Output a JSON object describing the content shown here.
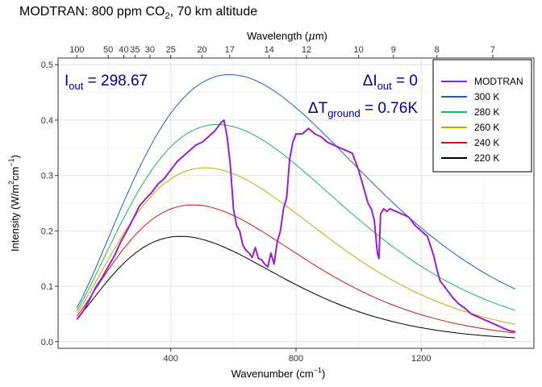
{
  "title": {
    "prefix": "MODTRAN: 800 ppm CO",
    "sub": "2",
    "suffix": ", 70 km altitude"
  },
  "annotations": {
    "iout": {
      "symbol": "I",
      "sub": "out",
      "text": " = 298.67"
    },
    "delta_iout": {
      "symbol": "ΔI",
      "sub": "out",
      "text": " = 0"
    },
    "delta_t": {
      "symbol": "ΔT",
      "sub": "ground",
      "text": " = 0.76K"
    }
  },
  "colors": {
    "MODTRAN": "#9a1fc6",
    "300 K": "#1f5fc0",
    "280 K": "#1fb05a",
    "260 K": "#b8b000",
    "240 K": "#cc1515",
    "220 K": "#000000",
    "grid_major": "#e0e0e0",
    "grid_minor": "#f1f1f1",
    "annotation": "#00008b"
  },
  "chart_data": {
    "type": "line",
    "xlabel": {
      "text": "Wavenumber (cm",
      "sup": "−1",
      "close": ")"
    },
    "ylabel": {
      "text": "Intensity (W/m",
      "sup1": "2",
      "mid": "cm",
      "sup2": "−1",
      "close": ")"
    },
    "top_axis_label": {
      "text": "Wavelength (",
      "mu": "μ",
      "unit": "m)"
    },
    "xlim": [
      40,
      1560
    ],
    "ylim": [
      -0.012,
      0.512
    ],
    "x_ticks": [
      400,
      800,
      1200
    ],
    "y_ticks": [
      0.0,
      0.1,
      0.2,
      0.3,
      0.4,
      0.5
    ],
    "y_tick_labels": [
      "0.0",
      "0.1",
      "0.2",
      "0.3",
      "0.4",
      "0.5"
    ],
    "top_ticks_um": [
      100,
      50,
      40,
      35,
      30,
      25,
      20,
      17,
      14,
      12,
      10,
      9,
      8,
      7
    ],
    "grid": true,
    "legend_position": "top-right",
    "series": [
      {
        "name": "MODTRAN",
        "x": [
          100,
          120,
          140,
          160,
          180,
          200,
          220,
          240,
          260,
          280,
          300,
          320,
          340,
          360,
          380,
          400,
          420,
          440,
          460,
          480,
          500,
          520,
          540,
          560,
          570,
          580,
          590,
          600,
          610,
          620,
          630,
          640,
          650,
          660,
          670,
          680,
          690,
          700,
          710,
          720,
          730,
          740,
          750,
          760,
          770,
          780,
          790,
          800,
          820,
          840,
          860,
          880,
          900,
          920,
          940,
          960,
          980,
          1000,
          1010,
          1020,
          1030,
          1040,
          1050,
          1060,
          1065,
          1070,
          1080,
          1090,
          1100,
          1120,
          1140,
          1160,
          1180,
          1200,
          1220,
          1240,
          1250,
          1260,
          1280,
          1300,
          1320,
          1340,
          1360,
          1380,
          1400,
          1420,
          1440,
          1460,
          1480,
          1500
        ],
        "y": [
          0.04,
          0.055,
          0.075,
          0.098,
          0.115,
          0.135,
          0.155,
          0.18,
          0.2,
          0.222,
          0.245,
          0.258,
          0.27,
          0.285,
          0.295,
          0.31,
          0.325,
          0.335,
          0.345,
          0.355,
          0.36,
          0.37,
          0.38,
          0.395,
          0.4,
          0.37,
          0.32,
          0.24,
          0.21,
          0.2,
          0.175,
          0.165,
          0.16,
          0.152,
          0.17,
          0.15,
          0.148,
          0.14,
          0.135,
          0.16,
          0.14,
          0.18,
          0.2,
          0.24,
          0.26,
          0.33,
          0.36,
          0.375,
          0.375,
          0.385,
          0.375,
          0.37,
          0.36,
          0.355,
          0.35,
          0.345,
          0.34,
          0.31,
          0.29,
          0.27,
          0.25,
          0.24,
          0.22,
          0.16,
          0.15,
          0.23,
          0.24,
          0.235,
          0.24,
          0.235,
          0.23,
          0.225,
          0.21,
          0.2,
          0.19,
          0.155,
          0.13,
          0.11,
          0.095,
          0.08,
          0.068,
          0.06,
          0.05,
          0.045,
          0.04,
          0.035,
          0.03,
          0.025,
          0.02,
          0.018
        ]
      },
      {
        "name": "300 K",
        "temperature": 300
      },
      {
        "name": "280 K",
        "temperature": 280
      },
      {
        "name": "260 K",
        "temperature": 260
      },
      {
        "name": "240 K",
        "temperature": 240
      },
      {
        "name": "220 K",
        "temperature": 220
      }
    ]
  }
}
